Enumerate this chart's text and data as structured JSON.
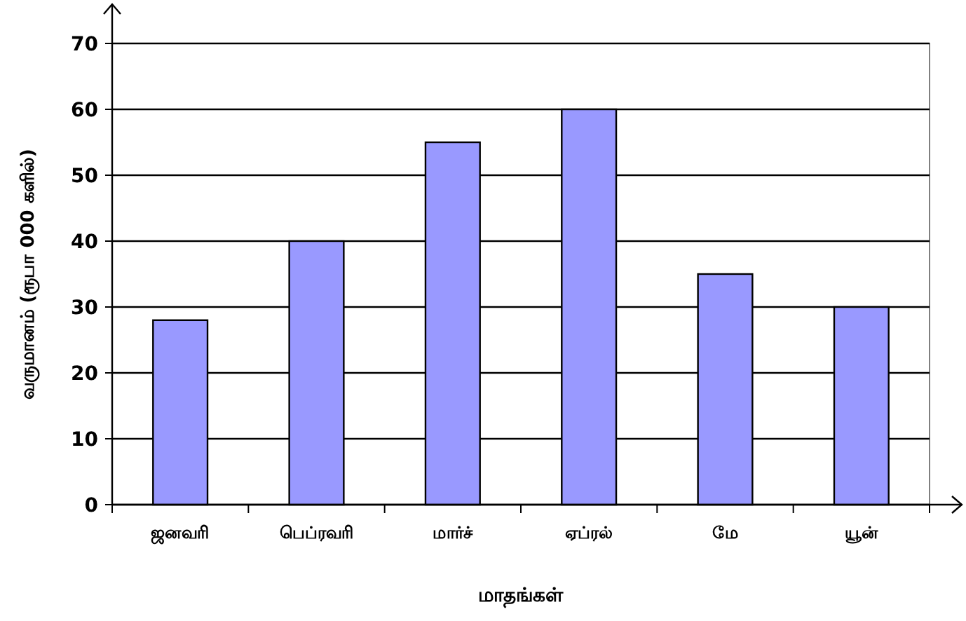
{
  "chart_data": {
    "type": "bar",
    "xlabel": "மாதங்கள்",
    "ylabel": "வருமானம் (ரூபா 000 களில்)",
    "categories": [
      "ஜனவரி",
      "பெப்ரவரி",
      "மார்ச்",
      "ஏப்ரல்",
      "மே",
      "யூன்"
    ],
    "values": [
      28,
      40,
      55,
      60,
      35,
      30
    ],
    "color": "#9999ff",
    "ylim": [
      0,
      70
    ],
    "yticks": [
      0,
      10,
      20,
      30,
      40,
      50,
      60,
      70
    ],
    "grid": "y"
  }
}
